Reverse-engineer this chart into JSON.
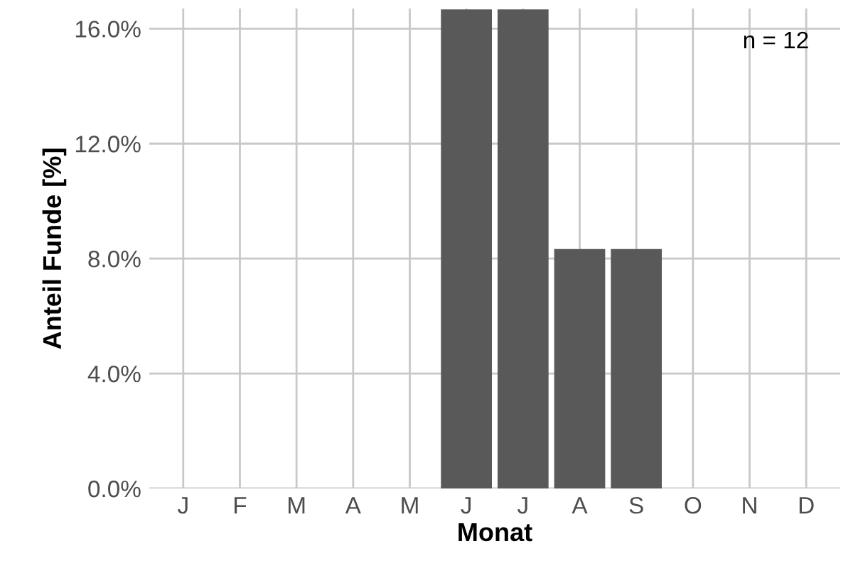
{
  "chart_data": {
    "type": "bar",
    "xlabel": "Monat",
    "ylabel": "Anteil Funde [%]",
    "categories": [
      "J",
      "F",
      "M",
      "A",
      "M",
      "J",
      "J",
      "A",
      "S",
      "O",
      "N",
      "D"
    ],
    "values": [
      0,
      0,
      0,
      0,
      0,
      16.67,
      16.67,
      8.33,
      8.33,
      0,
      0,
      0
    ],
    "color": "#595959",
    "ylim": [
      0,
      16.7
    ],
    "yticks": [
      {
        "value": 0,
        "label": "0.0%"
      },
      {
        "value": 4,
        "label": "4.0%"
      },
      {
        "value": 8,
        "label": "8.0%"
      },
      {
        "value": 12,
        "label": "12.0%"
      },
      {
        "value": 16,
        "label": "16.0%"
      }
    ],
    "grid": true,
    "annotations": [
      "n = 12"
    ]
  }
}
